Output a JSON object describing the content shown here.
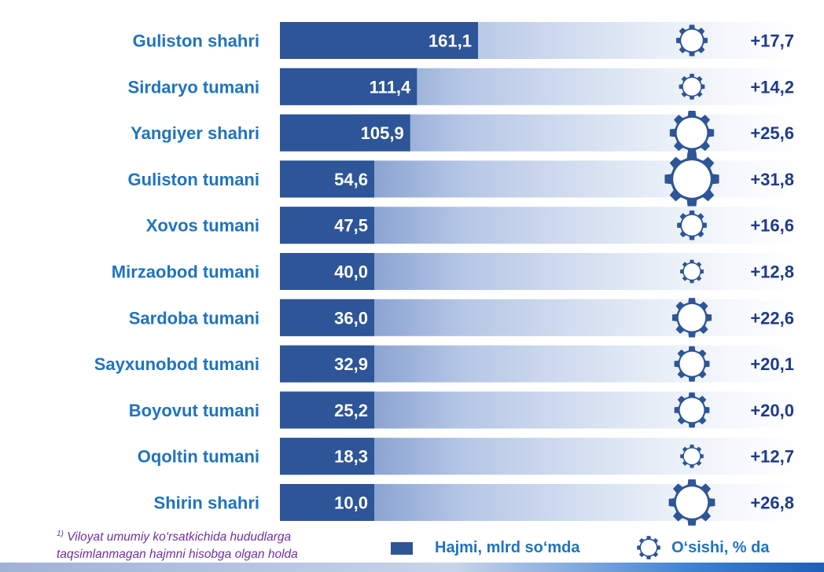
{
  "chart_data": {
    "type": "bar",
    "orientation": "horizontal",
    "categories": [
      "Guliston shahri",
      "Sirdaryo tumani",
      "Yangiyer shahri",
      "Guliston tumani",
      "Xovos tumani",
      "Mirzaobod tumani",
      "Sardoba tumani",
      "Sayxunobod tumani",
      "Boyovut tumani",
      "Oqoltin tumani",
      "Shirin shahri"
    ],
    "series": [
      {
        "name": "Hajmi, mlrd so‘mda",
        "values": [
          161.1,
          111.4,
          105.9,
          54.6,
          47.5,
          40.0,
          36.0,
          32.9,
          25.2,
          18.3,
          10.0
        ],
        "labels": [
          "161,1",
          "111,4",
          "105,9",
          "54,6",
          "47,5",
          "40,0",
          "36,0",
          "32,9",
          "25,2",
          "18,3",
          "10,0"
        ],
        "color": "#2D5597"
      },
      {
        "name": "O‘sishi, % da",
        "values": [
          17.7,
          14.2,
          25.6,
          31.8,
          16.6,
          12.8,
          22.6,
          20.1,
          20.0,
          12.7,
          26.8
        ],
        "labels": [
          "+17,7",
          "+14,2",
          "+25,6",
          "+31,8",
          "+16,6",
          "+12,8",
          "+22,6",
          "+20,1",
          "+20,0",
          "+12,7",
          "+26,8"
        ],
        "color": "#2D5597"
      }
    ],
    "category_label_color": "#1F73BF",
    "growth_label_color": "#1F3A8A",
    "track_gradient": [
      "#2D5597",
      "#b7c8e6",
      "#ffffff"
    ],
    "legend_position": "bottom"
  },
  "footnote": {
    "marker": "1)",
    "text": "Viloyat umumiy ko‘rsatkichida hududlarga taqsimlanmagan hajmni hisobga olgan holda"
  },
  "legend": {
    "volume_label": "Hajmi, mlrd so‘mda",
    "growth_label": "O‘sishi, % da",
    "volume_icon": "bar-swatch",
    "growth_icon": "gear-icon"
  }
}
